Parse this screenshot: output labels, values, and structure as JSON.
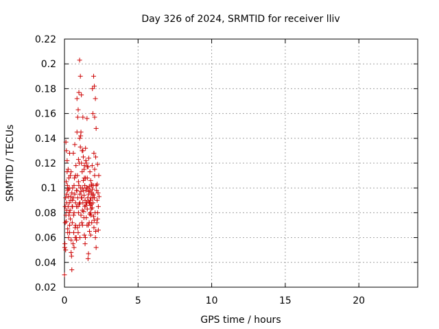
{
  "chart_data": {
    "type": "scatter",
    "title": "Day 326 of 2024, SRMTID for receiver lliv",
    "xlabel": "GPS time / hours",
    "ylabel": "SRMTID / TECUs",
    "xlim": [
      0,
      24
    ],
    "ylim": [
      0.02,
      0.22
    ],
    "xticks": [
      0,
      5,
      10,
      15,
      20
    ],
    "yticks": [
      0.02,
      0.04,
      0.06,
      0.08,
      0.1,
      0.12,
      0.14,
      0.16,
      0.18,
      0.2,
      0.22
    ],
    "xtick_labels": [
      "0",
      "5",
      "10",
      "15",
      "20"
    ],
    "ytick_labels": [
      "0.02",
      "0.04",
      "0.06",
      "0.08",
      "0.1",
      "0.12",
      "0.14",
      "0.16",
      "0.18",
      "0.2",
      "0.22"
    ],
    "grid": true,
    "marker": "+",
    "series": [
      {
        "name": "lliv",
        "color": "#cc0000",
        "x": [
          0.0,
          0.03,
          0.05,
          0.05,
          0.08,
          0.08,
          0.1,
          0.1,
          0.12,
          0.13,
          0.15,
          0.15,
          0.18,
          0.18,
          0.2,
          0.22,
          0.22,
          0.25,
          0.25,
          0.28,
          0.28,
          0.3,
          0.3,
          0.33,
          0.33,
          0.35,
          0.35,
          0.38,
          0.4,
          0.4,
          0.43,
          0.45,
          0.45,
          0.48,
          0.5,
          0.5,
          0.53,
          0.55,
          0.55,
          0.58,
          0.6,
          0.6,
          0.63,
          0.65,
          0.65,
          0.68,
          0.7,
          0.7,
          0.73,
          0.75,
          0.75,
          0.78,
          0.8,
          0.82,
          0.82,
          0.85,
          0.85,
          0.88,
          0.88,
          0.9,
          0.9,
          0.93,
          0.93,
          0.95,
          0.95,
          0.98,
          0.98,
          1.0,
          1.0,
          1.03,
          1.03,
          1.05,
          1.05,
          1.08,
          1.08,
          1.1,
          1.1,
          1.12,
          1.12,
          1.15,
          1.15,
          1.18,
          1.18,
          1.2,
          1.2,
          1.22,
          1.22,
          1.25,
          1.25,
          1.28,
          1.28,
          1.3,
          1.3,
          1.33,
          1.33,
          1.35,
          1.35,
          1.38,
          1.38,
          1.4,
          1.4,
          1.43,
          1.43,
          1.45,
          1.45,
          1.48,
          1.48,
          1.5,
          1.5,
          1.53,
          1.53,
          1.55,
          1.55,
          1.58,
          1.58,
          1.6,
          1.6,
          1.63,
          1.63,
          1.65,
          1.65,
          1.68,
          1.68,
          1.7,
          1.7,
          1.73,
          1.73,
          1.75,
          1.75,
          1.78,
          1.78,
          1.8,
          1.8,
          1.83,
          1.83,
          1.85,
          1.85,
          1.88,
          1.88,
          1.9,
          1.9,
          1.93,
          1.93,
          1.95,
          1.95,
          1.98,
          1.98,
          2.0,
          2.0,
          2.03,
          2.03,
          2.05,
          2.05,
          2.08,
          2.1,
          2.1,
          2.12,
          2.15,
          2.15,
          2.18,
          2.2,
          2.22,
          2.22,
          2.25,
          2.25,
          2.28,
          2.3,
          2.3,
          2.33,
          2.35,
          0.15,
          0.25,
          0.35,
          0.45,
          0.55,
          0.65,
          0.75,
          0.85,
          0.95,
          1.05,
          1.15,
          1.25,
          1.35,
          1.45,
          1.55,
          1.65,
          1.75,
          1.85,
          1.95,
          2.05,
          2.15,
          2.25,
          0.02,
          0.12,
          0.22,
          0.32,
          0.42,
          0.52,
          0.62,
          0.72,
          0.82,
          0.92,
          1.02,
          1.12,
          1.22,
          1.32,
          1.42,
          1.52,
          1.62,
          1.72,
          1.82,
          1.92,
          2.02,
          2.12
        ],
        "y": [
          0.03,
          0.055,
          0.085,
          0.072,
          0.05,
          0.092,
          0.137,
          0.078,
          0.105,
          0.13,
          0.088,
          0.095,
          0.122,
          0.113,
          0.102,
          0.067,
          0.098,
          0.115,
          0.085,
          0.06,
          0.093,
          0.108,
          0.078,
          0.088,
          0.1,
          0.07,
          0.064,
          0.082,
          0.11,
          0.075,
          0.09,
          0.048,
          0.058,
          0.045,
          0.034,
          0.096,
          0.072,
          0.085,
          0.1,
          0.055,
          0.128,
          0.092,
          0.064,
          0.08,
          0.052,
          0.108,
          0.135,
          0.095,
          0.06,
          0.07,
          0.088,
          0.118,
          0.06,
          0.085,
          0.098,
          0.145,
          0.172,
          0.068,
          0.11,
          0.157,
          0.092,
          0.064,
          0.163,
          0.123,
          0.08,
          0.102,
          0.177,
          0.087,
          0.12,
          0.14,
          0.203,
          0.06,
          0.095,
          0.133,
          0.19,
          0.142,
          0.1,
          0.078,
          0.145,
          0.175,
          0.12,
          0.072,
          0.092,
          0.113,
          0.13,
          0.07,
          0.1,
          0.088,
          0.157,
          0.125,
          0.106,
          0.081,
          0.098,
          0.115,
          0.094,
          0.118,
          0.062,
          0.085,
          0.102,
          0.09,
          0.055,
          0.132,
          0.108,
          0.098,
          0.086,
          0.076,
          0.12,
          0.1,
          0.088,
          0.07,
          0.156,
          0.108,
          0.083,
          0.092,
          0.1,
          0.043,
          0.117,
          0.047,
          0.089,
          0.124,
          0.095,
          0.072,
          0.101,
          0.088,
          0.065,
          0.113,
          0.098,
          0.08,
          0.09,
          0.062,
          0.106,
          0.078,
          0.092,
          0.102,
          0.087,
          0.096,
          0.072,
          0.118,
          0.084,
          0.099,
          0.18,
          0.088,
          0.16,
          0.094,
          0.102,
          0.077,
          0.19,
          0.068,
          0.128,
          0.182,
          0.092,
          0.157,
          0.11,
          0.08,
          0.06,
          0.172,
          0.125,
          0.052,
          0.148,
          0.098,
          0.072,
          0.09,
          0.103,
          0.119,
          0.08,
          0.096,
          0.066,
          0.085,
          0.11,
          0.093,
          0.082,
          0.099,
          0.128,
          0.113,
          0.09,
          0.102,
          0.11,
          0.098,
          0.105,
          0.088,
          0.092,
          0.13,
          0.108,
          0.122,
          0.117,
          0.097,
          0.086,
          0.103,
          0.095,
          0.115,
          0.102,
          0.075,
          0.052,
          0.073,
          0.064,
          0.08,
          0.093,
          0.085,
          0.078,
          0.068,
          0.058,
          0.085,
          0.07,
          0.097,
          0.082,
          0.076,
          0.06,
          0.088,
          0.07,
          0.079,
          0.083,
          0.092,
          0.074,
          0.065
        ]
      }
    ]
  }
}
